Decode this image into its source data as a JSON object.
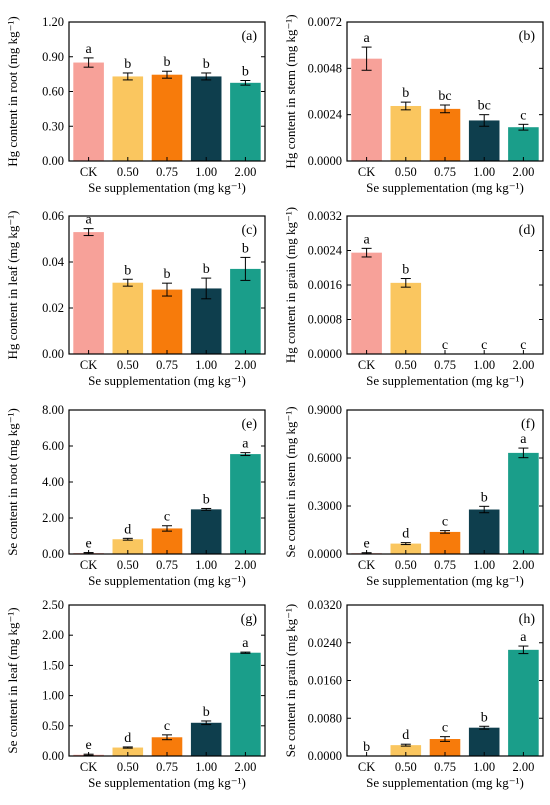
{
  "colors": [
    "#F7A199",
    "#FAC65F",
    "#F77B0B",
    "#0E3E4D",
    "#1A9E8A"
  ],
  "x_axis_label": "Se supplementation (mg kg⁻¹)",
  "chart_data": [
    {
      "type": "bar",
      "panel_label": "(a)",
      "ylabel": "Hg content in root (mg kg⁻¹)",
      "categories": [
        "CK",
        "0.50",
        "0.75",
        "1.00",
        "2.00"
      ],
      "values": [
        0.85,
        0.73,
        0.745,
        0.73,
        0.675
      ],
      "errors": [
        0.04,
        0.03,
        0.03,
        0.03,
        0.02
      ],
      "letters": [
        "a",
        "b",
        "b",
        "b",
        "b"
      ],
      "ylim": [
        0,
        1.2
      ],
      "ytick_values": [
        0,
        0.3,
        0.6,
        0.9,
        1.2
      ],
      "ytick_labels": [
        "0.00",
        "0.30",
        "0.60",
        "0.90",
        "1.20"
      ]
    },
    {
      "type": "bar",
      "panel_label": "(b)",
      "ylabel": "Hg content in stem (mg kg⁻¹)",
      "categories": [
        "CK",
        "0.50",
        "0.75",
        "1.00",
        "2.00"
      ],
      "values": [
        0.0053,
        0.00285,
        0.0027,
        0.0021,
        0.00175
      ],
      "errors": [
        0.0006,
        0.0002,
        0.0002,
        0.0003,
        0.00015
      ],
      "letters": [
        "a",
        "b",
        "bc",
        "bc",
        "c"
      ],
      "ylim": [
        0,
        0.0072
      ],
      "ytick_values": [
        0,
        0.0024,
        0.0048,
        0.0072
      ],
      "ytick_labels": [
        "0.0000",
        "0.0024",
        "0.0048",
        "0.0072"
      ]
    },
    {
      "type": "bar",
      "panel_label": "(c)",
      "ylabel": "Hg content in leaf (mg kg⁻¹)",
      "categories": [
        "CK",
        "0.50",
        "0.75",
        "1.00",
        "2.00"
      ],
      "values": [
        0.053,
        0.031,
        0.028,
        0.0285,
        0.037
      ],
      "errors": [
        0.0015,
        0.0015,
        0.0028,
        0.0045,
        0.005
      ],
      "letters": [
        "a",
        "b",
        "b",
        "b",
        "b"
      ],
      "ylim": [
        0,
        0.06
      ],
      "ytick_values": [
        0,
        0.02,
        0.04,
        0.06
      ],
      "ytick_labels": [
        "0.00",
        "0.02",
        "0.04",
        "0.06"
      ]
    },
    {
      "type": "bar",
      "panel_label": "(d)",
      "ylabel": "Hg content in grain (mg kg⁻¹)",
      "categories": [
        "CK",
        "0.50",
        "0.75",
        "1.00",
        "2.00"
      ],
      "values": [
        0.00235,
        0.00165,
        0,
        0,
        0
      ],
      "errors": [
        0.0001,
        0.0001,
        0,
        0,
        0
      ],
      "letters": [
        "a",
        "b",
        "c",
        "c",
        "c"
      ],
      "ylim": [
        0,
        0.0032
      ],
      "ytick_values": [
        0,
        0.0008,
        0.0016,
        0.0024,
        0.0032
      ],
      "ytick_labels": [
        "0.0000",
        "0.0008",
        "0.0016",
        "0.0024",
        "0.0032"
      ]
    },
    {
      "type": "bar",
      "panel_label": "(e)",
      "ylabel": "Se content in root (mg kg⁻¹)",
      "categories": [
        "CK",
        "0.50",
        "0.75",
        "1.00",
        "2.00"
      ],
      "values": [
        0.05,
        0.82,
        1.42,
        2.48,
        5.55
      ],
      "errors": [
        0.03,
        0.05,
        0.15,
        0.05,
        0.08
      ],
      "letters": [
        "e",
        "d",
        "c",
        "b",
        "a"
      ],
      "ylim": [
        0,
        8
      ],
      "ytick_values": [
        0,
        2,
        4,
        6,
        8
      ],
      "ytick_labels": [
        "0.00",
        "2.00",
        "4.00",
        "6.00",
        "8.00"
      ]
    },
    {
      "type": "bar",
      "panel_label": "(f)",
      "ylabel": "Se content in stem (mg kg⁻¹)",
      "categories": [
        "CK",
        "0.50",
        "0.75",
        "1.00",
        "2.00"
      ],
      "values": [
        0.005,
        0.065,
        0.138,
        0.278,
        0.632
      ],
      "errors": [
        0.003,
        0.006,
        0.008,
        0.02,
        0.03
      ],
      "letters": [
        "e",
        "d",
        "c",
        "b",
        "a"
      ],
      "ylim": [
        0,
        0.9
      ],
      "ytick_values": [
        0,
        0.3,
        0.6,
        0.9
      ],
      "ytick_labels": [
        "0.0000",
        "0.3000",
        "0.6000",
        "0.9000"
      ]
    },
    {
      "type": "bar",
      "panel_label": "(g)",
      "ylabel": "Se content in leaf (mg kg⁻¹)",
      "categories": [
        "CK",
        "0.50",
        "0.75",
        "1.00",
        "2.00"
      ],
      "values": [
        0.02,
        0.14,
        0.31,
        0.55,
        1.71
      ],
      "errors": [
        0.01,
        0.01,
        0.04,
        0.03,
        0.01
      ],
      "letters": [
        "e",
        "d",
        "c",
        "b",
        "a"
      ],
      "ylim": [
        0,
        2.5
      ],
      "ytick_values": [
        0,
        0.5,
        1.0,
        1.5,
        2.0,
        2.5
      ],
      "ytick_labels": [
        "0.00",
        "0.50",
        "1.00",
        "1.50",
        "2.00",
        "2.50"
      ]
    },
    {
      "type": "bar",
      "panel_label": "(h)",
      "ylabel": "Se content in grain (mg kg⁻¹)",
      "categories": [
        "CK",
        "0.50",
        "0.75",
        "1.00",
        "2.00"
      ],
      "values": [
        0,
        0.0023,
        0.0036,
        0.006,
        0.0225
      ],
      "errors": [
        0,
        0.0002,
        0.0005,
        0.0003,
        0.0008
      ],
      "letters": [
        "b",
        "d",
        "c",
        "b",
        "a"
      ],
      "ylim": [
        0,
        0.032
      ],
      "ytick_values": [
        0,
        0.008,
        0.016,
        0.024,
        0.032
      ],
      "ytick_labels": [
        "0.0000",
        "0.0080",
        "0.0160",
        "0.0240",
        "0.0320"
      ]
    }
  ]
}
